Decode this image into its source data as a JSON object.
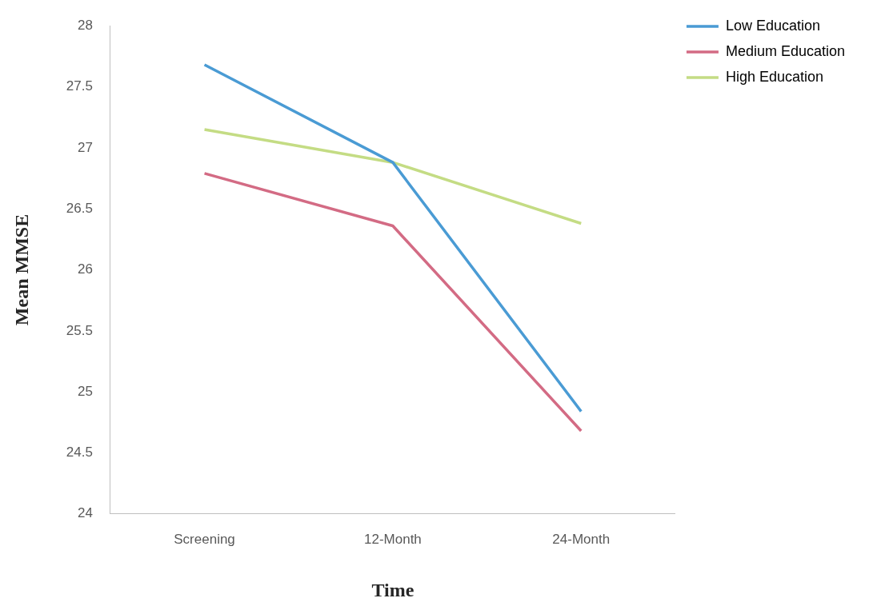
{
  "chart_data": {
    "type": "line",
    "xlabel": "Time",
    "ylabel": "Mean MMSE",
    "categories": [
      "Screening",
      "12-Month",
      "24-Month"
    ],
    "series": [
      {
        "name": "Low Education",
        "color": "#4a9bd4",
        "values": [
          27.68,
          26.88,
          24.84
        ]
      },
      {
        "name": "Medium Education",
        "color": "#d36b84",
        "values": [
          26.79,
          26.36,
          24.68
        ]
      },
      {
        "name": "High Education",
        "color": "#c4dc84",
        "values": [
          27.15,
          26.88,
          26.38
        ]
      }
    ],
    "ylim": [
      24,
      28
    ],
    "yticks": [
      24,
      24.5,
      25,
      25.5,
      26,
      26.5,
      27,
      27.5,
      28
    ],
    "grid": false,
    "legend": "top right",
    "marker": "none",
    "line_style": "solid"
  }
}
